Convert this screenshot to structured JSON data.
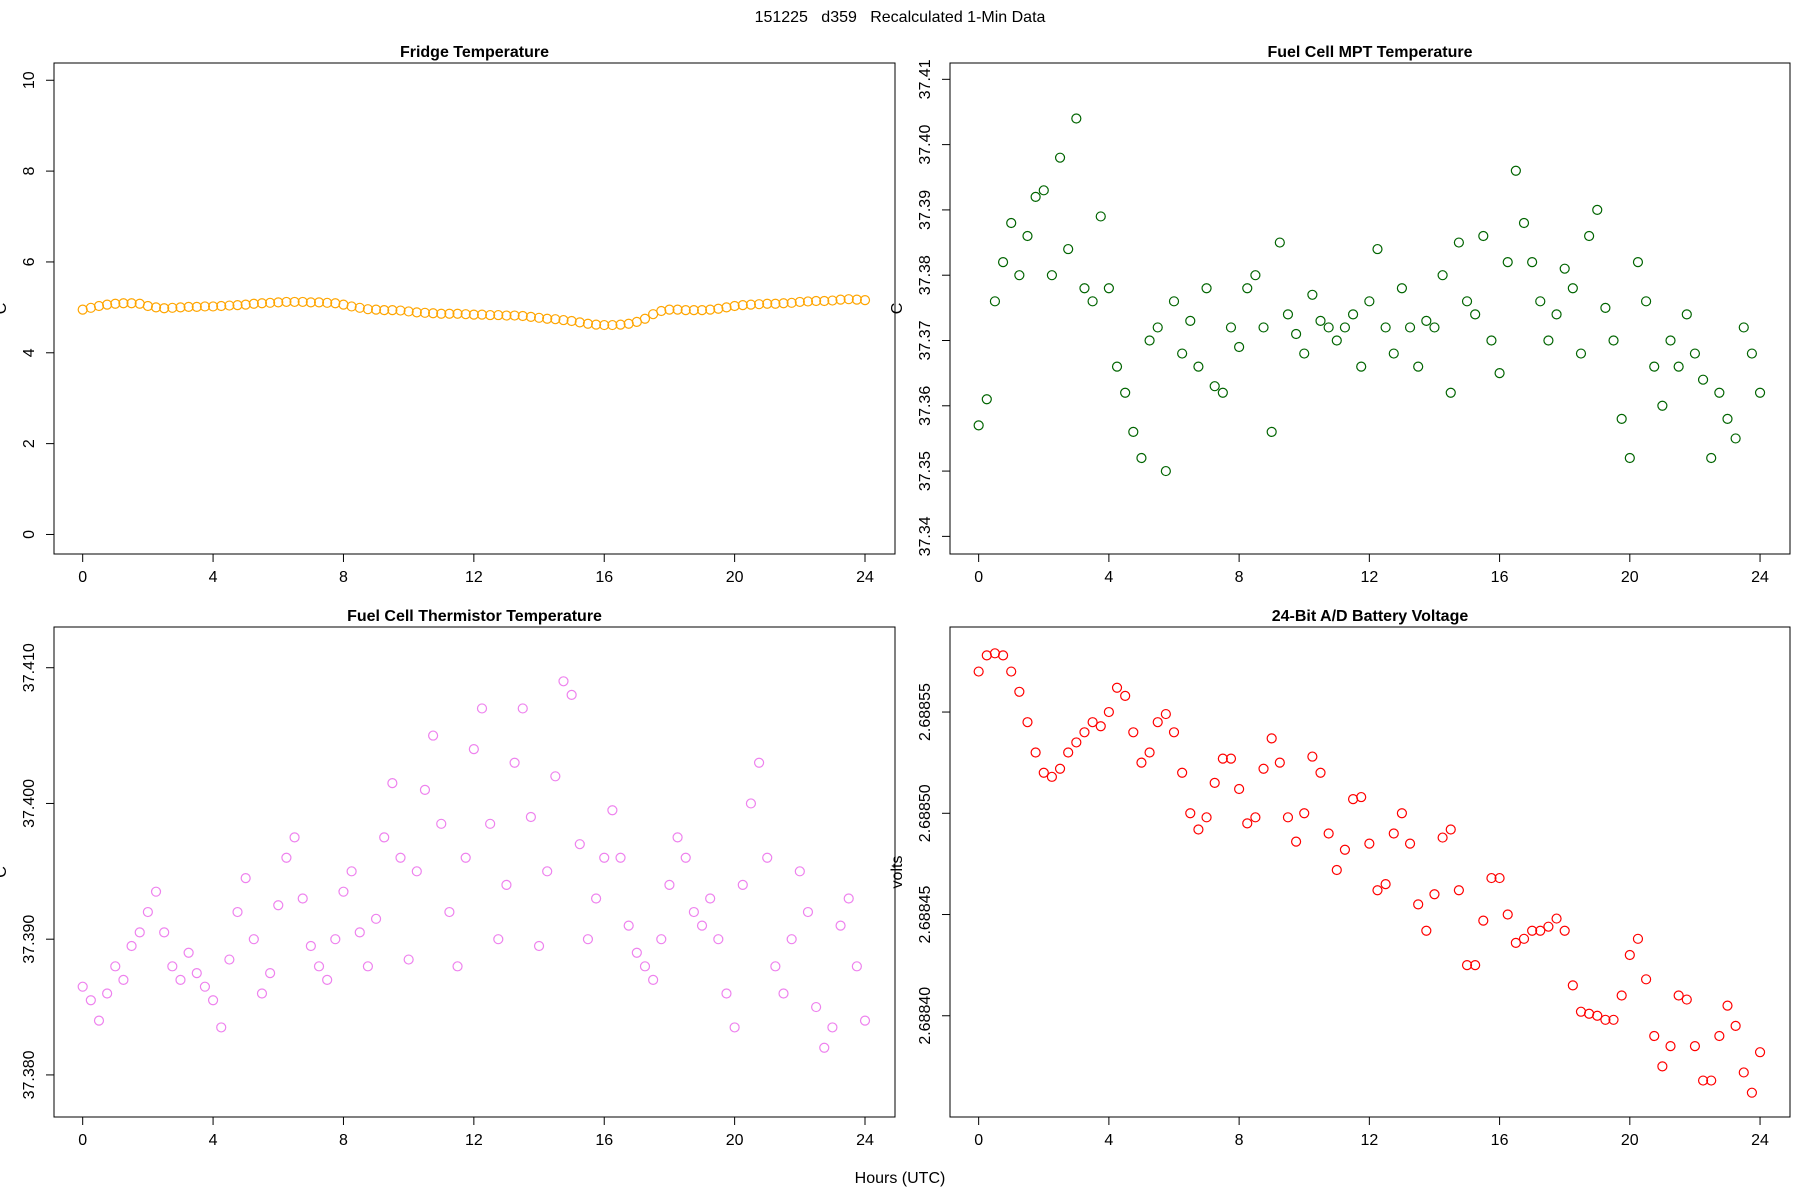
{
  "title": "151225   d359   Recalculated 1-Min Data",
  "x_label": "Hours (UTC)",
  "chart_data": [
    {
      "type": "scatter",
      "title": "Fridge Temperature",
      "y_label": "C",
      "color": "#ffa500",
      "xlim": [
        -0.88,
        24.92
      ],
      "xticks": [
        0,
        4,
        8,
        12,
        16,
        20,
        24
      ],
      "ylim": [
        -0.43,
        10.38
      ],
      "yticks": [
        0,
        2,
        4,
        6,
        8,
        10
      ],
      "x": [
        0,
        0.25,
        0.5,
        0.75,
        1,
        1.25,
        1.5,
        1.75,
        2,
        2.25,
        2.5,
        2.75,
        3,
        3.25,
        3.5,
        3.75,
        4,
        4.25,
        4.5,
        4.75,
        5,
        5.25,
        5.5,
        5.75,
        6,
        6.25,
        6.5,
        6.75,
        7,
        7.25,
        7.5,
        7.75,
        8,
        8.25,
        8.5,
        8.75,
        9,
        9.25,
        9.5,
        9.75,
        10,
        10.25,
        10.5,
        10.75,
        11,
        11.25,
        11.5,
        11.75,
        12,
        12.25,
        12.5,
        12.75,
        13,
        13.25,
        13.5,
        13.75,
        14,
        14.25,
        14.5,
        14.75,
        15,
        15.25,
        15.5,
        15.75,
        16,
        16.25,
        16.5,
        16.75,
        17,
        17.25,
        17.5,
        17.75,
        18,
        18.25,
        18.5,
        18.75,
        19,
        19.25,
        19.5,
        19.75,
        20,
        20.25,
        20.5,
        20.75,
        21,
        21.25,
        21.5,
        21.75,
        22,
        22.25,
        22.5,
        22.75,
        23,
        23.25,
        23.5,
        23.75,
        24
      ],
      "values": [
        4.95,
        4.99,
        5.03,
        5.06,
        5.08,
        5.09,
        5.09,
        5.08,
        5.03,
        5.0,
        4.98,
        4.99,
        5.0,
        5.01,
        5.01,
        5.02,
        5.02,
        5.03,
        5.04,
        5.05,
        5.06,
        5.08,
        5.09,
        5.1,
        5.11,
        5.12,
        5.12,
        5.12,
        5.11,
        5.11,
        5.1,
        5.09,
        5.06,
        5.02,
        4.99,
        4.96,
        4.95,
        4.94,
        4.94,
        4.93,
        4.91,
        4.89,
        4.88,
        4.87,
        4.86,
        4.86,
        4.86,
        4.85,
        4.84,
        4.84,
        4.83,
        4.83,
        4.82,
        4.82,
        4.81,
        4.79,
        4.77,
        4.75,
        4.74,
        4.72,
        4.7,
        4.67,
        4.64,
        4.62,
        4.61,
        4.61,
        4.62,
        4.64,
        4.68,
        4.75,
        4.85,
        4.92,
        4.95,
        4.95,
        4.94,
        4.94,
        4.94,
        4.95,
        4.97,
        5.0,
        5.03,
        5.05,
        5.06,
        5.07,
        5.08,
        5.08,
        5.09,
        5.1,
        5.12,
        5.13,
        5.14,
        5.14,
        5.15,
        5.17,
        5.18,
        5.17,
        5.16
      ]
    },
    {
      "type": "scatter",
      "title": "Fuel Cell MPT Temperature",
      "y_label": "C",
      "color": "#006400",
      "xlim": [
        -0.88,
        24.92
      ],
      "xticks": [
        0,
        4,
        8,
        12,
        16,
        20,
        24
      ],
      "ylim": [
        37.3373,
        37.4125
      ],
      "yticks": [
        37.34,
        37.35,
        37.36,
        37.37,
        37.38,
        37.39,
        {
          "value": 37.4,
          "label": "37.40"
        },
        37.41
      ],
      "x": [
        0,
        0.25,
        0.5,
        0.75,
        1,
        1.25,
        1.5,
        1.75,
        2,
        2.25,
        2.5,
        2.75,
        3,
        3.25,
        3.5,
        3.75,
        4,
        4.25,
        4.5,
        4.75,
        5,
        5.25,
        5.5,
        5.75,
        6,
        6.25,
        6.5,
        6.75,
        7,
        7.25,
        7.5,
        7.75,
        8,
        8.25,
        8.5,
        8.75,
        9,
        9.25,
        9.5,
        9.75,
        10,
        10.25,
        10.5,
        10.75,
        11,
        11.25,
        11.5,
        11.75,
        12,
        12.25,
        12.5,
        12.75,
        13,
        13.25,
        13.5,
        13.75,
        14,
        14.25,
        14.5,
        14.75,
        15,
        15.25,
        15.5,
        15.75,
        16,
        16.25,
        16.5,
        16.75,
        17,
        17.25,
        17.5,
        17.75,
        18,
        18.25,
        18.5,
        18.75,
        19,
        19.25,
        19.5,
        19.75,
        20,
        20.25,
        20.5,
        20.75,
        21,
        21.25,
        21.5,
        21.75,
        22,
        22.25,
        22.5,
        22.75,
        23,
        23.25,
        23.5,
        23.75,
        24
      ],
      "values": [
        37.357,
        37.361,
        37.376,
        37.382,
        37.388,
        37.38,
        37.386,
        37.392,
        37.393,
        37.38,
        37.398,
        37.384,
        37.404,
        37.378,
        37.376,
        37.389,
        37.378,
        37.366,
        37.362,
        37.356,
        37.352,
        37.37,
        37.372,
        37.35,
        37.376,
        37.368,
        37.373,
        37.366,
        37.378,
        37.363,
        37.362,
        37.372,
        37.369,
        37.378,
        37.38,
        37.372,
        37.356,
        37.385,
        37.374,
        37.371,
        37.368,
        37.377,
        37.373,
        37.372,
        37.37,
        37.372,
        37.374,
        37.366,
        37.376,
        37.384,
        37.372,
        37.368,
        37.378,
        37.372,
        37.366,
        37.373,
        37.372,
        37.38,
        37.362,
        37.385,
        37.376,
        37.374,
        37.386,
        37.37,
        37.365,
        37.382,
        37.396,
        37.388,
        37.382,
        37.376,
        37.37,
        37.374,
        37.381,
        37.378,
        37.368,
        37.386,
        37.39,
        37.375,
        37.37,
        37.358,
        37.352,
        37.382,
        37.376,
        37.366,
        37.36,
        37.37,
        37.366,
        37.374,
        37.368,
        37.364,
        37.352,
        37.362,
        37.358,
        37.355,
        37.372,
        37.368,
        37.362
      ]
    },
    {
      "type": "scatter",
      "title": "Fuel Cell Thermistor Temperature",
      "y_label": "C",
      "color": "#ee82ee",
      "xlim": [
        -0.88,
        24.92
      ],
      "xticks": [
        0,
        4,
        8,
        12,
        16,
        20,
        24
      ],
      "ylim": [
        37.3769,
        37.413
      ],
      "yticks": [
        {
          "value": 37.38,
          "label": "37.380"
        },
        {
          "value": 37.39,
          "label": "37.390"
        },
        {
          "value": 37.4,
          "label": "37.400"
        },
        {
          "value": 37.41,
          "label": "37.410"
        }
      ],
      "x": [
        0,
        0.25,
        0.5,
        0.75,
        1,
        1.25,
        1.5,
        1.75,
        2,
        2.25,
        2.5,
        2.75,
        3,
        3.25,
        3.5,
        3.75,
        4,
        4.25,
        4.5,
        4.75,
        5,
        5.25,
        5.5,
        5.75,
        6,
        6.25,
        6.5,
        6.75,
        7,
        7.25,
        7.5,
        7.75,
        8,
        8.25,
        8.5,
        8.75,
        9,
        9.25,
        9.5,
        9.75,
        10,
        10.25,
        10.5,
        10.75,
        11,
        11.25,
        11.5,
        11.75,
        12,
        12.25,
        12.5,
        12.75,
        13,
        13.25,
        13.5,
        13.75,
        14,
        14.25,
        14.5,
        14.75,
        15,
        15.25,
        15.5,
        15.75,
        16,
        16.25,
        16.5,
        16.75,
        17,
        17.25,
        17.5,
        17.75,
        18,
        18.25,
        18.5,
        18.75,
        19,
        19.25,
        19.5,
        19.75,
        20,
        20.25,
        20.5,
        20.75,
        21,
        21.25,
        21.5,
        21.75,
        22,
        22.25,
        22.5,
        22.75,
        23,
        23.25,
        23.5,
        23.75,
        24
      ],
      "values": [
        37.3865,
        37.3855,
        37.384,
        37.386,
        37.388,
        37.387,
        37.3895,
        37.3905,
        37.392,
        37.3935,
        37.3905,
        37.388,
        37.387,
        37.389,
        37.3875,
        37.3865,
        37.3855,
        37.3835,
        37.3885,
        37.392,
        37.3945,
        37.39,
        37.386,
        37.3875,
        37.3925,
        37.396,
        37.3975,
        37.393,
        37.3895,
        37.388,
        37.387,
        37.39,
        37.3935,
        37.395,
        37.3905,
        37.388,
        37.3915,
        37.3975,
        37.4015,
        37.396,
        37.3885,
        37.395,
        37.401,
        37.405,
        37.3985,
        37.392,
        37.388,
        37.396,
        37.404,
        37.407,
        37.3985,
        37.39,
        37.394,
        37.403,
        37.407,
        37.399,
        37.3895,
        37.395,
        37.402,
        37.409,
        37.408,
        37.397,
        37.39,
        37.393,
        37.396,
        37.3995,
        37.396,
        37.391,
        37.389,
        37.388,
        37.387,
        37.39,
        37.394,
        37.3975,
        37.396,
        37.392,
        37.391,
        37.393,
        37.39,
        37.386,
        37.3835,
        37.394,
        37.4,
        37.403,
        37.396,
        37.388,
        37.386,
        37.39,
        37.395,
        37.392,
        37.385,
        37.382,
        37.3835,
        37.391,
        37.393,
        37.388,
        37.384
      ]
    },
    {
      "type": "scatter",
      "title": "24-Bit A/D Battery Voltage",
      "y_label": "volts",
      "color": "#ff0000",
      "xlim": [
        -0.88,
        24.92
      ],
      "xticks": [
        0,
        4,
        8,
        12,
        16,
        20,
        24
      ],
      "ylim": [
        2.68835,
        2.688592
      ],
      "yticks": [
        {
          "value": 2.6884,
          "label": "2.68840"
        },
        2.68845,
        {
          "value": 2.6885,
          "label": "2.68850"
        },
        2.68855
      ],
      "x": [
        0,
        0.25,
        0.5,
        0.75,
        1,
        1.25,
        1.5,
        1.75,
        2,
        2.25,
        2.5,
        2.75,
        3,
        3.25,
        3.5,
        3.75,
        4,
        4.25,
        4.5,
        4.75,
        5,
        5.25,
        5.5,
        5.75,
        6,
        6.25,
        6.5,
        6.75,
        7,
        7.25,
        7.5,
        7.75,
        8,
        8.25,
        8.5,
        8.75,
        9,
        9.25,
        9.5,
        9.75,
        10,
        10.25,
        10.5,
        10.75,
        11,
        11.25,
        11.5,
        11.75,
        12,
        12.25,
        12.5,
        12.75,
        13,
        13.25,
        13.5,
        13.75,
        14,
        14.25,
        14.5,
        14.75,
        15,
        15.25,
        15.5,
        15.75,
        16,
        16.25,
        16.5,
        16.75,
        17,
        17.25,
        17.5,
        17.75,
        18,
        18.25,
        18.5,
        18.75,
        19,
        19.25,
        19.5,
        19.75,
        20,
        20.25,
        20.5,
        20.75,
        21,
        21.25,
        21.5,
        21.75,
        22,
        22.25,
        22.5,
        22.75,
        23,
        23.25,
        23.5,
        23.75,
        24
      ],
      "values": [
        2.68857,
        2.688578,
        2.688579,
        2.688578,
        2.68857,
        2.68856,
        2.688545,
        2.68853,
        2.68852,
        2.688518,
        2.688522,
        2.68853,
        2.688535,
        2.68854,
        2.688545,
        2.688543,
        2.68855,
        2.688562,
        2.688558,
        2.68854,
        2.688525,
        2.68853,
        2.688545,
        2.688549,
        2.68854,
        2.68852,
        2.6885,
        2.688492,
        2.688498,
        2.688515,
        2.688527,
        2.688527,
        2.688512,
        2.688495,
        2.688498,
        2.688522,
        2.688537,
        2.688525,
        2.688498,
        2.688486,
        2.6885,
        2.688528,
        2.68852,
        2.68849,
        2.688472,
        2.688482,
        2.688507,
        2.688508,
        2.688485,
        2.688462,
        2.688465,
        2.68849,
        2.6885,
        2.688485,
        2.688455,
        2.688442,
        2.68846,
        2.688488,
        2.688492,
        2.688462,
        2.688425,
        2.688425,
        2.688447,
        2.688468,
        2.688468,
        2.68845,
        2.688436,
        2.688438,
        2.688442,
        2.688442,
        2.688444,
        2.688448,
        2.688442,
        2.688415,
        2.688402,
        2.688401,
        2.6884,
        2.688398,
        2.688398,
        2.68841,
        2.68843,
        2.688438,
        2.688418,
        2.68839,
        2.688375,
        2.688385,
        2.68841,
        2.688408,
        2.688385,
        2.688368,
        2.688368,
        2.68839,
        2.688405,
        2.688395,
        2.688372,
        2.688362,
        2.688382
      ]
    }
  ]
}
